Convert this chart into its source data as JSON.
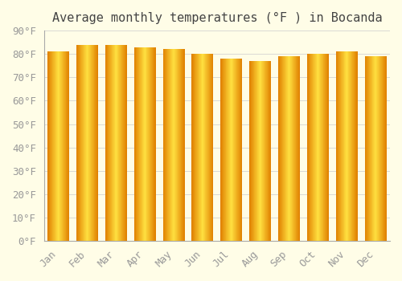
{
  "title": "Average monthly temperatures (°F ) in Bocanda",
  "months": [
    "Jan",
    "Feb",
    "Mar",
    "Apr",
    "May",
    "Jun",
    "Jul",
    "Aug",
    "Sep",
    "Oct",
    "Nov",
    "Dec"
  ],
  "values": [
    81,
    84,
    84,
    83,
    82,
    80,
    78,
    77,
    79,
    80,
    81,
    79
  ],
  "bar_color_edge": "#E08000",
  "bar_color_center": "#FFE040",
  "background_color": "#FFFDE7",
  "grid_color": "#CCCCCC",
  "ylim": [
    0,
    90
  ],
  "yticks": [
    0,
    10,
    20,
    30,
    40,
    50,
    60,
    70,
    80,
    90
  ],
  "ytick_labels": [
    "0°F",
    "10°F",
    "20°F",
    "30°F",
    "40°F",
    "50°F",
    "60°F",
    "70°F",
    "80°F",
    "90°F"
  ],
  "title_fontsize": 11,
  "tick_fontsize": 9,
  "font_color": "#999999",
  "title_color": "#444444",
  "bar_width": 0.75,
  "gradient_steps": 60
}
